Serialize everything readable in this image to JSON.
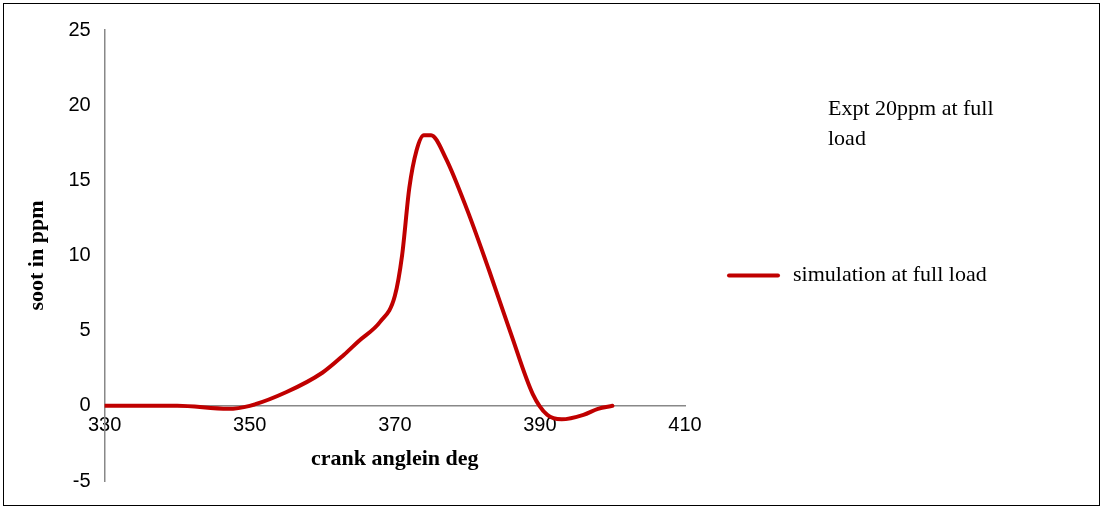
{
  "chart_data": {
    "type": "line",
    "xlabel": "crank anglein deg",
    "ylabel": "soot in ppm",
    "annotations": [
      "Expt 20ppm at full load"
    ],
    "xlim": [
      330,
      410
    ],
    "xticks": [
      330,
      350,
      370,
      390,
      410
    ],
    "ylim": [
      -5,
      25
    ],
    "yticks": [
      -5,
      0,
      5,
      10,
      15,
      20,
      25
    ],
    "grid": false,
    "legend": "right",
    "marker": "none",
    "line_style": "solid",
    "series": [
      {
        "name": "simulation at full load",
        "color": "#c00000",
        "x": [
          330,
          340,
          347,
          350,
          355,
          360,
          363,
          365,
          368,
          370,
          371,
          372,
          373,
          374,
          375,
          377,
          380,
          383,
          386,
          389,
          391,
          393,
          396,
          398,
          400
        ],
        "values": [
          0,
          0,
          -0.2,
          0,
          0.9,
          2.2,
          3.4,
          4.3,
          5.6,
          7.3,
          10,
          14.5,
          17,
          18,
          18,
          16.5,
          13,
          9,
          4.8,
          0.8,
          -0.6,
          -0.9,
          -0.6,
          -0.2,
          0
        ]
      }
    ]
  }
}
